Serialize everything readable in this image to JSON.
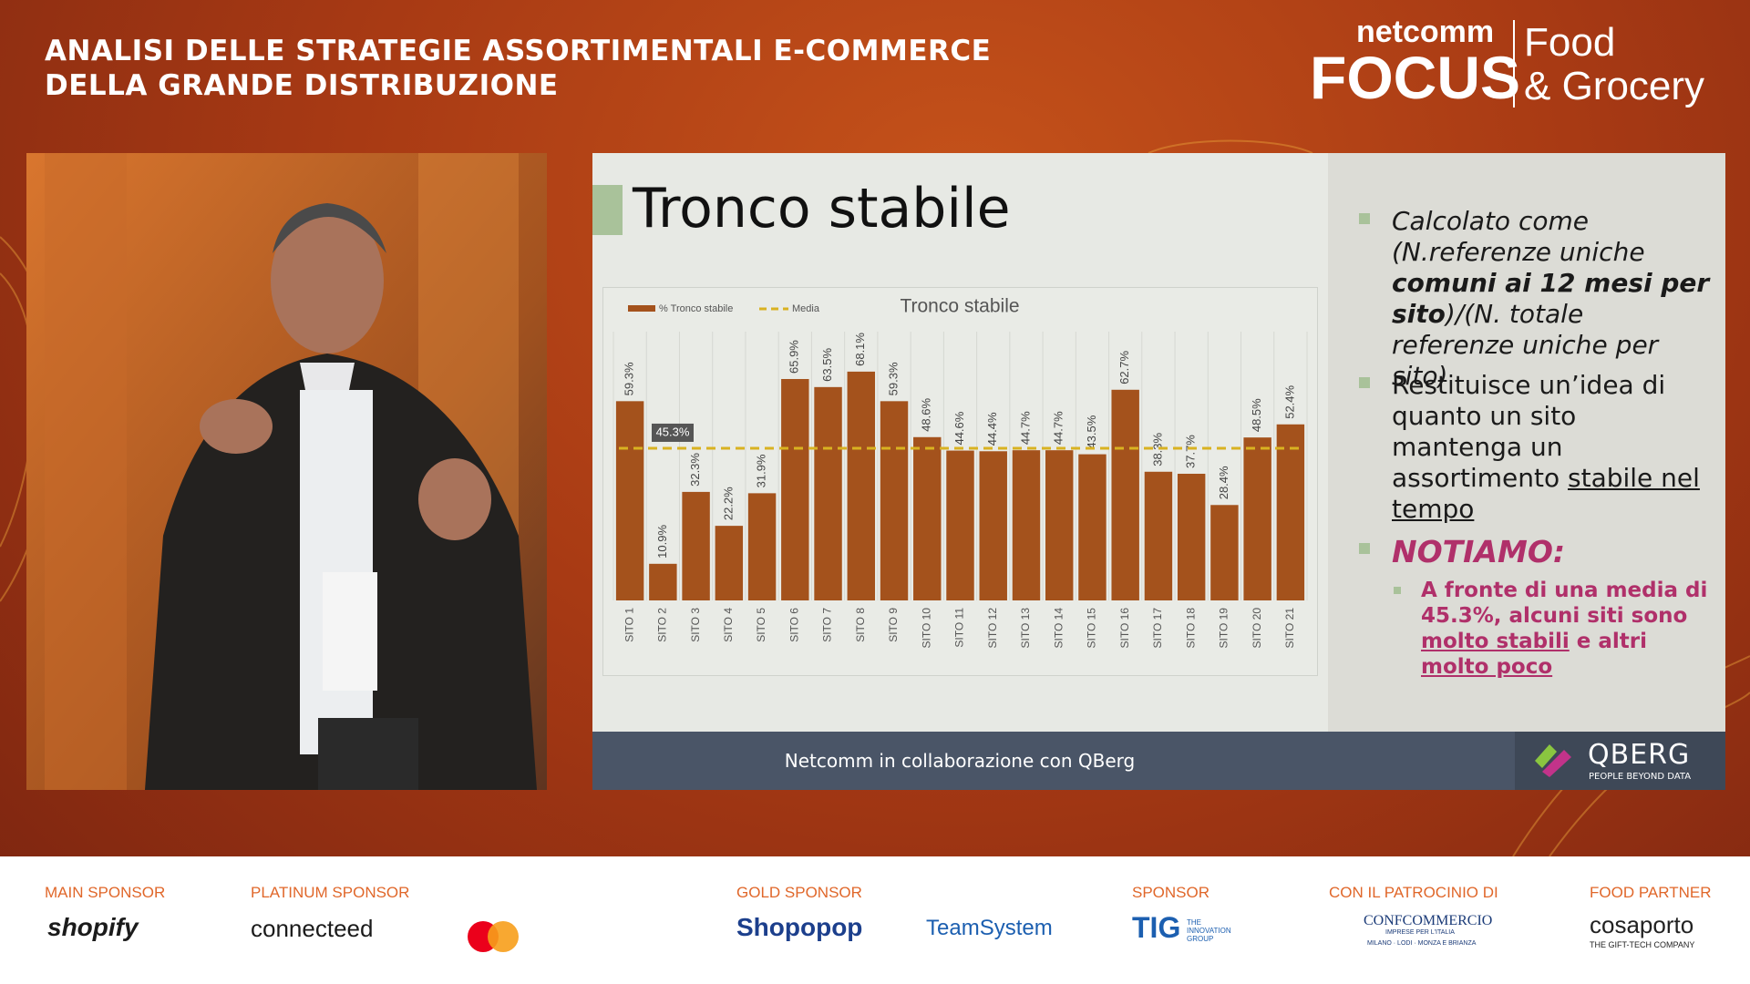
{
  "header": {
    "title_lines": [
      "ANALISI DELLE STRATEGIE ASSORTIMENTALI E-COMMERCE",
      "DELLA GRANDE DISTRIBUZIONE"
    ],
    "logo": {
      "brand": "netcomm",
      "event": "FOCUS",
      "topic_1": "Food",
      "topic_2": "& Grocery"
    }
  },
  "slide": {
    "title": "Tronco stabile",
    "bullets": [
      {
        "parts": [
          "Calcolato come (N.referenze uniche ",
          "comuni ai 12 mesi per sito",
          ")/(N. totale referenze uniche per sito)"
        ]
      },
      {
        "parts": [
          "Restituisce un’idea di quanto un sito mantenga un assortimento ",
          "stabile nel tempo"
        ]
      },
      {
        "heading": "NOTIAMO:",
        "parts": [
          "A fronte di una media di 45.3%, alcuni siti sono ",
          "molto stabili",
          " e altri ",
          "molto poco"
        ]
      }
    ],
    "footer": "Netcomm in collaborazione con QBerg",
    "partner": {
      "name": "QBERG",
      "tagline": "PEOPLE BEYOND DATA"
    }
  },
  "chart_data": {
    "type": "bar",
    "title": "Tronco stabile",
    "categories": [
      "SITO 1",
      "SITO 2",
      "SITO 3",
      "SITO 4",
      "SITO 5",
      "SITO 6",
      "SITO 7",
      "SITO 8",
      "SITO 9",
      "SITO 10",
      "SITO 11",
      "SITO 12",
      "SITO 13",
      "SITO 14",
      "SITO 15",
      "SITO 16",
      "SITO 17",
      "SITO 18",
      "SITO 19",
      "SITO 20",
      "SITO 21"
    ],
    "series": [
      {
        "name": "% Tronco stabile",
        "color": "#a4521c",
        "values": [
          59.3,
          10.9,
          32.3,
          22.2,
          31.9,
          65.9,
          63.5,
          68.1,
          59.3,
          48.6,
          44.6,
          44.4,
          44.7,
          44.7,
          43.5,
          62.7,
          38.3,
          37.7,
          28.4,
          48.5,
          52.4
        ],
        "value_labels": [
          "59.3%",
          "10.9%",
          "32.3%",
          "22.2%",
          "31.9%",
          "65.9%",
          "63.5%",
          "68.1%",
          "59.3%",
          "48.6%",
          "44.6%",
          "44.4%",
          "44.7%",
          "44.7%",
          "43.5%",
          "62.7%",
          "38.3%",
          "37.7%",
          "28.4%",
          "48.5%",
          "52.4%"
        ]
      }
    ],
    "mean": {
      "name": "Media",
      "color": "#d9b221",
      "value": 45.3,
      "value_label": "45.3%"
    },
    "ylim": [
      0,
      80
    ]
  },
  "sponsors": [
    {
      "label": "MAIN SPONSOR",
      "logos": [
        "shopify"
      ]
    },
    {
      "label": "PLATINUM SPONSOR",
      "logos": [
        "connecteed"
      ]
    },
    {
      "label": "GOLD SPONSOR",
      "logos": [
        "Shopopop",
        "TeamSystem"
      ]
    },
    {
      "label": "SPONSOR",
      "logos": [
        "TIG",
        "THE INNOVATION GROUP"
      ]
    },
    {
      "label": "CON IL PATROCINIO DI",
      "logos": [
        "CONFCOMMERCIO",
        "IMPRESE PER L'ITALIA",
        "MILANO · LODI · MONZA E BRIANZA"
      ]
    },
    {
      "label": "FOOD PARTNER",
      "logos": [
        "cosaporto",
        "THE GIFT-TECH COMPANY"
      ]
    }
  ]
}
